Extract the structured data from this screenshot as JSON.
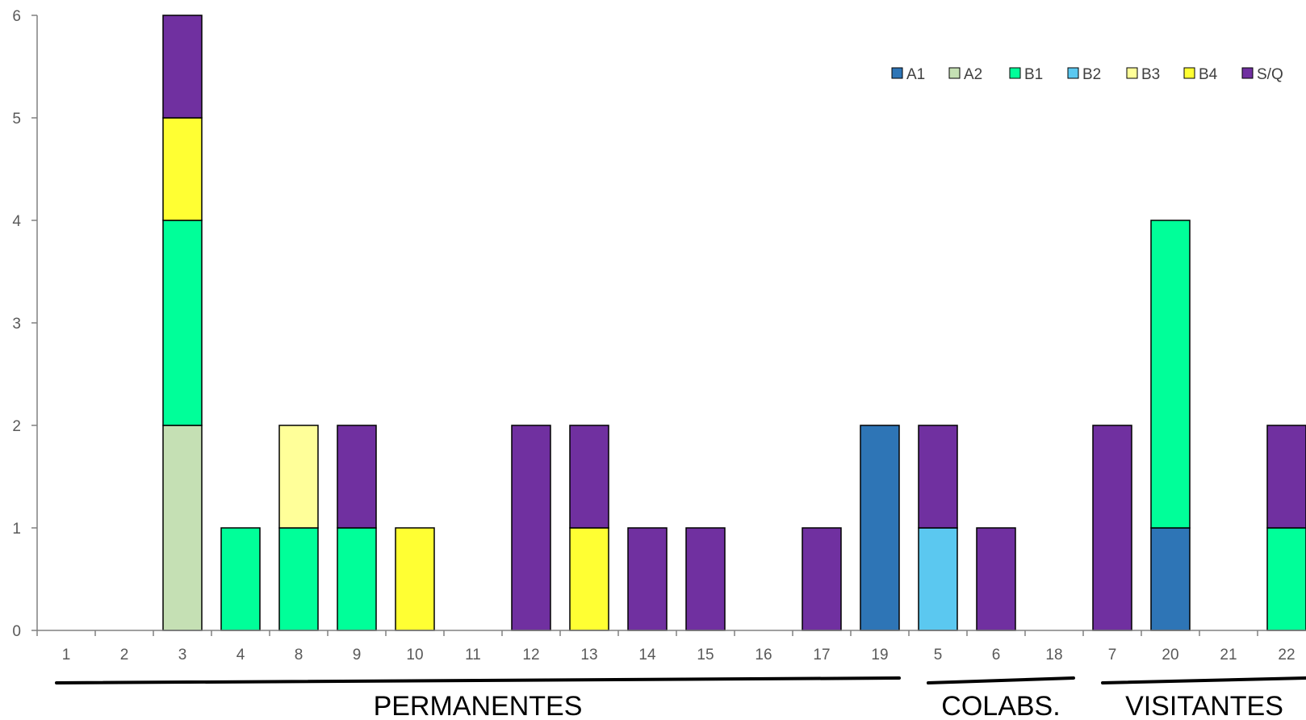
{
  "chart_data": {
    "type": "bar",
    "stacked": true,
    "categories": [
      "1",
      "2",
      "3",
      "4",
      "8",
      "9",
      "10",
      "11",
      "12",
      "13",
      "14",
      "15",
      "16",
      "17",
      "19",
      "5",
      "6",
      "18",
      "7",
      "20",
      "21",
      "22"
    ],
    "series": [
      {
        "name": "A1",
        "color": "#2e75b6",
        "values": [
          0,
          0,
          0,
          0,
          0,
          0,
          0,
          0,
          0,
          0,
          0,
          0,
          0,
          0,
          2,
          0,
          0,
          0,
          0,
          1,
          0,
          0
        ]
      },
      {
        "name": "A2",
        "color": "#c5e0b4",
        "values": [
          0,
          0,
          2,
          0,
          0,
          0,
          0,
          0,
          0,
          0,
          0,
          0,
          0,
          0,
          0,
          0,
          0,
          0,
          0,
          0,
          0,
          0
        ]
      },
      {
        "name": "B1",
        "color": "#00ff99",
        "values": [
          0,
          0,
          2,
          1,
          1,
          1,
          0,
          0,
          0,
          0,
          0,
          0,
          0,
          0,
          0,
          0,
          0,
          0,
          0,
          3,
          0,
          1
        ]
      },
      {
        "name": "B2",
        "color": "#5bc8f0",
        "values": [
          0,
          0,
          0,
          0,
          0,
          0,
          0,
          0,
          0,
          0,
          0,
          0,
          0,
          0,
          0,
          1,
          0,
          0,
          0,
          0,
          0,
          0
        ]
      },
      {
        "name": "B3",
        "color": "#ffff99",
        "values": [
          0,
          0,
          0,
          0,
          1,
          0,
          0,
          0,
          0,
          0,
          0,
          0,
          0,
          0,
          0,
          0,
          0,
          0,
          0,
          0,
          0,
          0
        ]
      },
      {
        "name": "B4",
        "color": "#ffff33",
        "values": [
          0,
          0,
          1,
          0,
          0,
          0,
          1,
          0,
          0,
          1,
          0,
          0,
          0,
          0,
          0,
          0,
          0,
          0,
          0,
          0,
          0,
          0
        ]
      },
      {
        "name": "S/Q",
        "color": "#7030a0",
        "values": [
          0,
          0,
          1,
          0,
          0,
          1,
          0,
          0,
          2,
          1,
          1,
          1,
          0,
          1,
          0,
          1,
          1,
          0,
          2,
          0,
          0,
          1
        ]
      }
    ],
    "ylim": [
      0,
      6
    ],
    "yticks": [
      "0",
      "1",
      "2",
      "3",
      "4",
      "5",
      "6"
    ],
    "legend_position": "top-right",
    "groups": [
      {
        "label": "PERMANENTES",
        "from": "1",
        "to": "19"
      },
      {
        "label": "COLABS.",
        "from": "5",
        "to": "18"
      },
      {
        "label": "VISITANTES",
        "from": "7",
        "to": "22"
      }
    ]
  }
}
